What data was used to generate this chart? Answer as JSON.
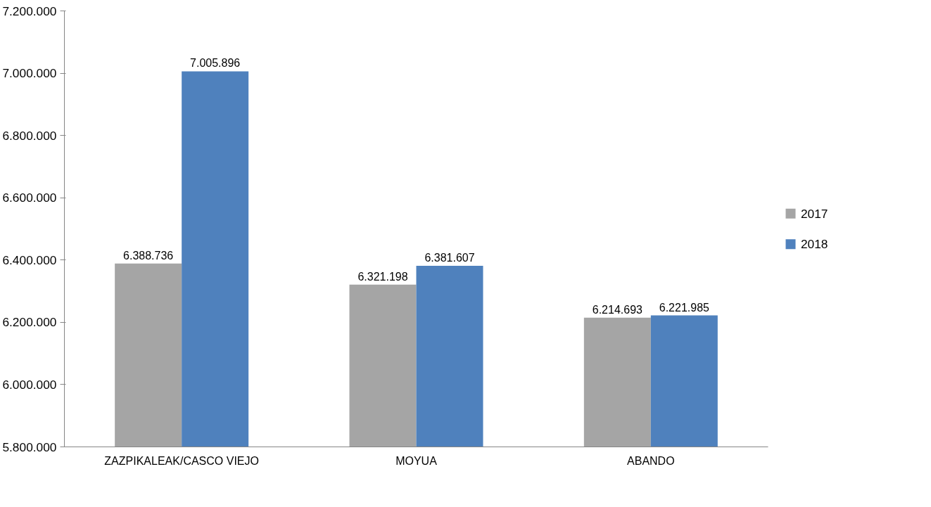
{
  "chart_data": {
    "type": "bar",
    "categories": [
      "ZAZPIKALEAK/CASCO VIEJO",
      "MOYUA",
      "ABANDO"
    ],
    "series": [
      {
        "name": "2017",
        "color": "#a5a5a5",
        "values": [
          6388736,
          6321198,
          6214693
        ],
        "value_labels": [
          "6.388.736",
          "6.321.198",
          "6.214.693"
        ]
      },
      {
        "name": "2018",
        "color": "#4f81bd",
        "values": [
          7005896,
          6381607,
          6221985
        ],
        "value_labels": [
          "7.005.896",
          "6.381.607",
          "6.221.985"
        ]
      }
    ],
    "ylim": [
      5800000,
      7200000
    ],
    "yticks": [
      {
        "value": 5800000,
        "label": "5.800.000"
      },
      {
        "value": 6000000,
        "label": "6.000.000"
      },
      {
        "value": 6200000,
        "label": "6.200.000"
      },
      {
        "value": 6400000,
        "label": "6.400.000"
      },
      {
        "value": 6600000,
        "label": "6.600.000"
      },
      {
        "value": 6800000,
        "label": "6.800.000"
      },
      {
        "value": 7000000,
        "label": "7.000.000"
      },
      {
        "value": 7200000,
        "label": "7.200.000"
      }
    ],
    "grid": false,
    "legend": "right"
  }
}
